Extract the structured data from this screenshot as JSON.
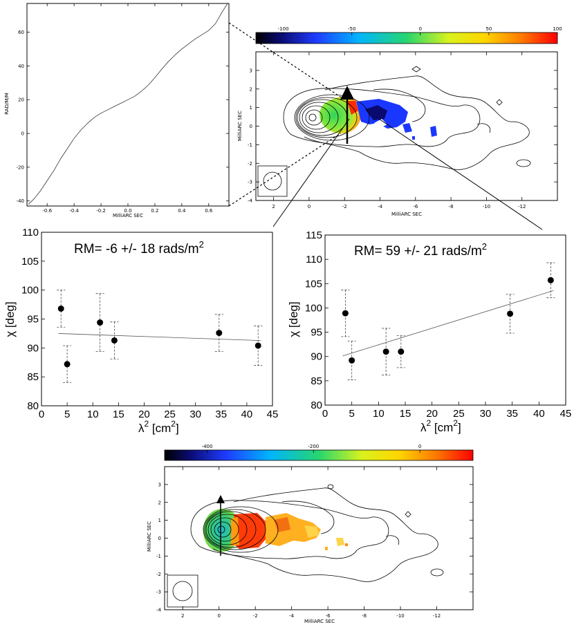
{
  "chart_data": [
    {
      "id": "rm-profile",
      "type": "line",
      "title": "",
      "xlabel": "MilliARC SEC",
      "ylabel": "RAD/M/M",
      "xlim": [
        -0.75,
        0.75
      ],
      "ylim": [
        -43,
        77
      ],
      "xticks": [
        -0.6,
        -0.4,
        -0.2,
        0.0,
        0.2,
        0.4,
        0.6
      ],
      "xtick_labels": [
        "-0.6",
        "-0.4",
        "-0.2",
        "0.0",
        "0.2",
        "0.4",
        "0.6"
      ],
      "yticks": [
        -40,
        -20,
        0,
        20,
        40,
        60
      ],
      "ytick_labels": [
        "-40",
        "-20",
        "0",
        "20",
        "40",
        "60"
      ],
      "x": [
        -0.74,
        -0.7,
        -0.65,
        -0.6,
        -0.55,
        -0.5,
        -0.45,
        -0.4,
        -0.35,
        -0.3,
        -0.25,
        -0.2,
        -0.15,
        -0.1,
        -0.05,
        0.0,
        0.05,
        0.1,
        0.15,
        0.2,
        0.25,
        0.3,
        0.35,
        0.4,
        0.45,
        0.5,
        0.55,
        0.6,
        0.65,
        0.7,
        0.74
      ],
      "y": [
        -42,
        -39,
        -34,
        -28,
        -22,
        -15,
        -9,
        -3,
        2,
        6,
        9.5,
        12,
        14,
        16,
        18,
        20,
        22,
        25,
        28.5,
        33,
        38,
        42.5,
        46.5,
        50,
        53,
        56,
        58.5,
        61,
        65,
        72,
        77
      ]
    },
    {
      "id": "rm-map-top",
      "type": "heatmap",
      "colorbar_ticks": [
        -100,
        -50,
        0,
        50,
        100
      ],
      "colorbar_labels": [
        "-100",
        "-50",
        "0",
        "50",
        "100"
      ],
      "xlabel": "MilliARC SEC",
      "ylabel": "MilliARC SEC",
      "xlim": [
        3,
        -14
      ],
      "ylim": [
        -4,
        4
      ],
      "xtick_labels": [
        "2",
        "0",
        "-2",
        "-4",
        "-6",
        "-8",
        "-10",
        "-12"
      ],
      "ytick_labels": [
        "3",
        "2",
        "1",
        "0",
        "-1",
        "-2",
        "-3",
        "-4"
      ]
    },
    {
      "id": "fit-left",
      "type": "scatter",
      "title": "RM= -6 +/- 18  rads/m",
      "title_superscript": "2",
      "xlabel": "λ",
      "xlabel_superscript": "2",
      "xlabel_suffix": " [cm",
      "xlabel_end": "]",
      "ylabel": "χ [deg]",
      "xlim": [
        0,
        45
      ],
      "ylim": [
        80,
        110
      ],
      "xtick_labels": [
        "0",
        "5",
        "10",
        "15",
        "20",
        "25",
        "30",
        "35",
        "40",
        "45"
      ],
      "ytick_labels": [
        "80",
        "85",
        "90",
        "95",
        "100",
        "105",
        "110"
      ],
      "x": [
        3.8,
        5.0,
        11.4,
        14.2,
        34.6,
        42.2
      ],
      "y": [
        96.8,
        87.2,
        94.4,
        91.3,
        92.6,
        90.4
      ],
      "err": [
        3.2,
        3.2,
        5.0,
        3.2,
        3.2,
        3.4
      ],
      "fit": {
        "slope": -0.031,
        "intercept": 92.6
      }
    },
    {
      "id": "fit-right",
      "type": "scatter",
      "title": "RM= 59 +/- 21  rads/m",
      "title_superscript": "2",
      "xlabel": "λ",
      "xlabel_superscript": "2",
      "xlabel_suffix": " [cm",
      "xlabel_end": "]",
      "ylabel": "χ [deg]",
      "xlim": [
        0,
        45
      ],
      "ylim": [
        80,
        115
      ],
      "xtick_labels": [
        "0",
        "5",
        "10",
        "15",
        "20",
        "25",
        "30",
        "35",
        "40",
        "45"
      ],
      "ytick_labels": [
        "80",
        "85",
        "90",
        "95",
        "100",
        "105",
        "110",
        "115"
      ],
      "x": [
        3.8,
        5.0,
        11.4,
        14.2,
        34.6,
        42.2
      ],
      "y": [
        98.9,
        89.2,
        91.0,
        91.0,
        98.8,
        105.7
      ],
      "err": [
        4.8,
        4.0,
        4.8,
        3.3,
        4.0,
        3.6
      ],
      "fit": {
        "slope": 0.341,
        "intercept": 89.0
      }
    },
    {
      "id": "rm-map-bottom",
      "type": "heatmap",
      "colorbar_ticks": [
        -400,
        -200,
        0
      ],
      "colorbar_labels": [
        "-400",
        "-200",
        "0"
      ],
      "xlabel": "MilliARC SEC",
      "ylabel": "MilliARC SEC",
      "xlim": [
        3,
        -14
      ],
      "ylim": [
        -4,
        4
      ],
      "xtick_labels": [
        "2",
        "0",
        "-2",
        "-4",
        "-6",
        "-8",
        "-10",
        "-12"
      ],
      "ytick_labels": [
        "3",
        "2",
        "1",
        "0",
        "-1",
        "-2",
        "-3",
        "-4"
      ]
    }
  ]
}
